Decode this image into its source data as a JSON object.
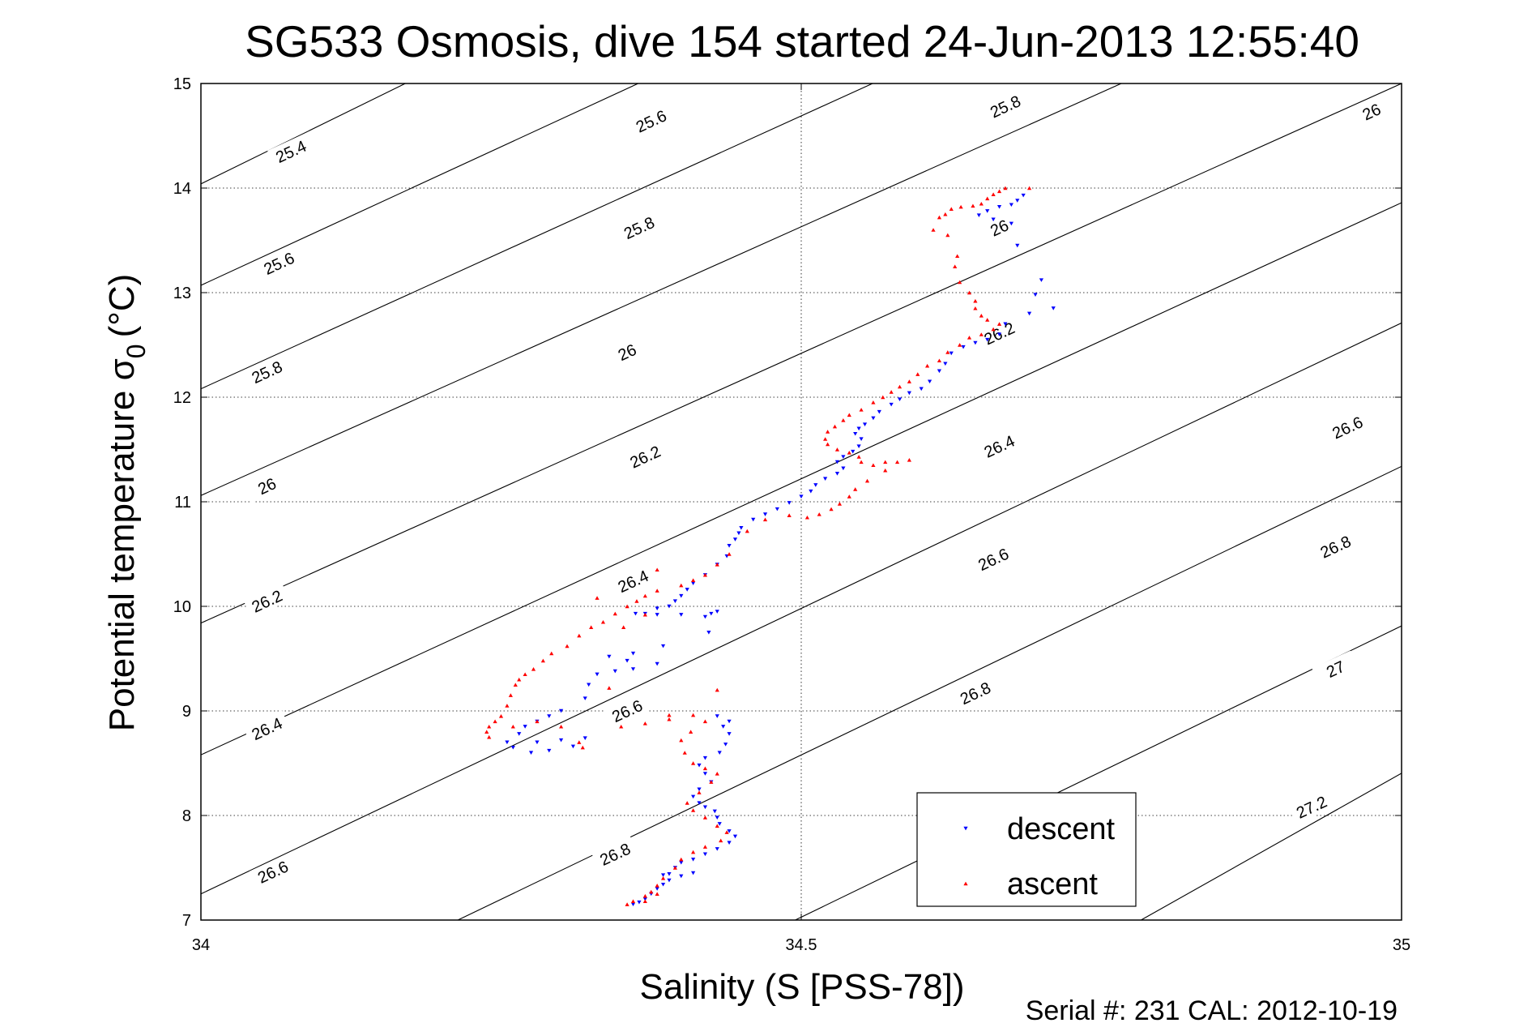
{
  "chart_data": {
    "type": "scatter",
    "title": "SG533 Osmosis, dive 154 started 24-Jun-2013 12:55:40",
    "xlabel": "Salinity (S [PSS-78])",
    "ylabel_main": "Potential temperature σ",
    "ylabel_sub": "0",
    "ylabel_unit": "(°C)",
    "xlim": [
      34,
      35
    ],
    "ylim": [
      7,
      15
    ],
    "x_ticks": [
      "34",
      "34.5",
      "35"
    ],
    "y_ticks": [
      "7",
      "8",
      "9",
      "10",
      "11",
      "12",
      "13",
      "14",
      "15"
    ],
    "grid": true,
    "legend_position": "bottom-right",
    "footer": "Serial #: 231  CAL: 2012-10-19",
    "isopycnals": [
      {
        "sigma": 25.4,
        "s": 34.0,
        "t": 14.04,
        "slope": 5.64
      },
      {
        "sigma": 25.6,
        "s": 34.0,
        "t": 13.07,
        "slope": 5.3
      },
      {
        "sigma": 25.8,
        "s": 34.0,
        "t": 12.08,
        "slope": 5.22
      },
      {
        "sigma": 26.0,
        "s": 34.0,
        "t": 11.06,
        "slope": 5.14
      },
      {
        "sigma": 26.2,
        "s": 34.0,
        "t": 9.84,
        "slope": 5.16
      },
      {
        "sigma": 26.4,
        "s": 34.0,
        "t": 8.58,
        "slope": 5.28
      },
      {
        "sigma": 26.6,
        "s": 34.0,
        "t": 7.25,
        "slope": 5.46
      },
      {
        "sigma": 26.8,
        "s": 34.214,
        "t": 7.0,
        "slope": 5.52
      },
      {
        "sigma": 27.0,
        "s": 34.495,
        "t": 7.0,
        "slope": 5.57
      },
      {
        "sigma": 27.2,
        "s": 34.783,
        "t": 7.0,
        "slope": 6.47
      }
    ],
    "contour_labels": [
      {
        "text": "25.4",
        "s": 34.075,
        "t": 14.35
      },
      {
        "text": "25.6",
        "s": 34.375,
        "t": 14.64
      },
      {
        "text": "25.8",
        "s": 34.67,
        "t": 14.78
      },
      {
        "text": "26",
        "s": 34.975,
        "t": 14.73
      },
      {
        "text": "25.6",
        "s": 34.065,
        "t": 13.28
      },
      {
        "text": "25.8",
        "s": 34.365,
        "t": 13.62
      },
      {
        "text": "26",
        "s": 34.665,
        "t": 13.62
      },
      {
        "text": "25.8",
        "s": 34.055,
        "t": 12.24
      },
      {
        "text": "26",
        "s": 34.355,
        "t": 12.43
      },
      {
        "text": "26.2",
        "s": 34.665,
        "t": 12.61
      },
      {
        "text": "26",
        "s": 34.055,
        "t": 11.15
      },
      {
        "text": "26.2",
        "s": 34.37,
        "t": 11.43
      },
      {
        "text": "26.4",
        "s": 34.665,
        "t": 11.53
      },
      {
        "text": "26.6",
        "s": 34.955,
        "t": 11.71
      },
      {
        "text": "26.2",
        "s": 34.055,
        "t": 10.05
      },
      {
        "text": "26.4",
        "s": 34.36,
        "t": 10.24
      },
      {
        "text": "26.6",
        "s": 34.66,
        "t": 10.45
      },
      {
        "text": "26.8",
        "s": 34.945,
        "t": 10.57
      },
      {
        "text": "26.4",
        "s": 34.055,
        "t": 8.83
      },
      {
        "text": "26.6",
        "s": 34.355,
        "t": 9.0
      },
      {
        "text": "26.8",
        "s": 34.645,
        "t": 9.17
      },
      {
        "text": "27",
        "s": 34.945,
        "t": 9.4
      },
      {
        "text": "26.6",
        "s": 34.06,
        "t": 7.46
      },
      {
        "text": "26.8",
        "s": 34.345,
        "t": 7.63
      },
      {
        "text": "27.2",
        "s": 34.925,
        "t": 8.08
      }
    ],
    "series": [
      {
        "name": "descent",
        "color": "#0000ff",
        "marker": "triangle-down",
        "points": [
          [
            34.685,
            13.93
          ],
          [
            34.68,
            13.88
          ],
          [
            34.675,
            13.84
          ],
          [
            34.665,
            13.82
          ],
          [
            34.655,
            13.78
          ],
          [
            34.648,
            13.74
          ],
          [
            34.66,
            13.7
          ],
          [
            34.675,
            13.66
          ],
          [
            34.68,
            13.45
          ],
          [
            34.7,
            13.12
          ],
          [
            34.695,
            12.98
          ],
          [
            34.71,
            12.85
          ],
          [
            34.69,
            12.8
          ],
          [
            34.67,
            12.7
          ],
          [
            34.665,
            12.6
          ],
          [
            34.655,
            12.55
          ],
          [
            34.645,
            12.52
          ],
          [
            34.635,
            12.48
          ],
          [
            34.625,
            12.42
          ],
          [
            34.62,
            12.32
          ],
          [
            34.615,
            12.25
          ],
          [
            34.607,
            12.15
          ],
          [
            34.6,
            12.08
          ],
          [
            34.59,
            12.04
          ],
          [
            34.582,
            11.98
          ],
          [
            34.575,
            11.93
          ],
          [
            34.565,
            11.86
          ],
          [
            34.56,
            11.8
          ],
          [
            34.553,
            11.74
          ],
          [
            34.548,
            11.7
          ],
          [
            34.545,
            11.65
          ],
          [
            34.55,
            11.6
          ],
          [
            34.548,
            11.53
          ],
          [
            34.543,
            11.48
          ],
          [
            34.535,
            11.43
          ],
          [
            34.53,
            11.38
          ],
          [
            34.535,
            11.32
          ],
          [
            34.53,
            11.27
          ],
          [
            34.52,
            11.22
          ],
          [
            34.512,
            11.16
          ],
          [
            34.508,
            11.1
          ],
          [
            34.5,
            11.05
          ],
          [
            34.49,
            10.99
          ],
          [
            34.48,
            10.93
          ],
          [
            34.47,
            10.88
          ],
          [
            34.46,
            10.83
          ],
          [
            34.45,
            10.75
          ],
          [
            34.448,
            10.7
          ],
          [
            34.445,
            10.64
          ],
          [
            34.44,
            10.58
          ],
          [
            34.438,
            10.48
          ],
          [
            34.43,
            10.4
          ],
          [
            34.42,
            10.3
          ],
          [
            34.41,
            10.22
          ],
          [
            34.405,
            10.16
          ],
          [
            34.4,
            10.1
          ],
          [
            34.395,
            10.05
          ],
          [
            34.39,
            10.0
          ],
          [
            34.38,
            9.98
          ],
          [
            34.37,
            9.93
          ],
          [
            34.362,
            9.93
          ],
          [
            34.38,
            9.92
          ],
          [
            34.4,
            9.92
          ],
          [
            34.42,
            9.9
          ],
          [
            34.425,
            9.93
          ],
          [
            34.43,
            9.95
          ],
          [
            34.423,
            9.75
          ],
          [
            34.385,
            9.62
          ],
          [
            34.36,
            9.55
          ],
          [
            34.34,
            9.52
          ],
          [
            34.355,
            9.48
          ],
          [
            34.38,
            9.45
          ],
          [
            34.36,
            9.4
          ],
          [
            34.345,
            9.38
          ],
          [
            34.33,
            9.35
          ],
          [
            34.323,
            9.25
          ],
          [
            34.32,
            9.12
          ],
          [
            34.3,
            9.0
          ],
          [
            34.29,
            8.95
          ],
          [
            34.28,
            8.9
          ],
          [
            34.27,
            8.85
          ],
          [
            34.265,
            8.78
          ],
          [
            34.255,
            8.7
          ],
          [
            34.26,
            8.65
          ],
          [
            34.28,
            8.7
          ],
          [
            34.3,
            8.72
          ],
          [
            34.32,
            8.74
          ],
          [
            34.31,
            8.66
          ],
          [
            34.29,
            8.62
          ],
          [
            34.275,
            8.6
          ],
          [
            34.43,
            8.95
          ],
          [
            34.44,
            8.9
          ],
          [
            34.435,
            8.85
          ],
          [
            34.44,
            8.78
          ],
          [
            34.437,
            8.68
          ],
          [
            34.432,
            8.6
          ],
          [
            34.42,
            8.55
          ],
          [
            34.415,
            8.48
          ],
          [
            34.42,
            8.4
          ],
          [
            34.425,
            8.32
          ],
          [
            34.415,
            8.25
          ],
          [
            34.41,
            8.18
          ],
          [
            34.415,
            8.12
          ],
          [
            34.42,
            8.08
          ],
          [
            34.428,
            8.04
          ],
          [
            34.43,
            7.98
          ],
          [
            34.432,
            7.92
          ],
          [
            34.44,
            7.85
          ],
          [
            34.445,
            7.8
          ],
          [
            34.44,
            7.74
          ],
          [
            34.43,
            7.68
          ],
          [
            34.42,
            7.63
          ],
          [
            34.41,
            7.58
          ],
          [
            34.4,
            7.55
          ],
          [
            34.395,
            7.5
          ],
          [
            34.39,
            7.44
          ],
          [
            34.39,
            7.38
          ],
          [
            34.385,
            7.34
          ],
          [
            34.38,
            7.3
          ],
          [
            34.375,
            7.25
          ],
          [
            34.37,
            7.2
          ],
          [
            34.365,
            7.17
          ],
          [
            34.36,
            7.15
          ],
          [
            34.385,
            7.43
          ],
          [
            34.4,
            7.42
          ],
          [
            34.41,
            7.45
          ]
        ]
      },
      {
        "name": "ascent",
        "color": "#ff0000",
        "marker": "triangle-up",
        "points": [
          [
            34.69,
            14.0
          ],
          [
            34.67,
            14.0
          ],
          [
            34.665,
            13.97
          ],
          [
            34.66,
            13.94
          ],
          [
            34.655,
            13.9
          ],
          [
            34.65,
            13.85
          ],
          [
            34.643,
            13.83
          ],
          [
            34.633,
            13.82
          ],
          [
            34.625,
            13.8
          ],
          [
            34.62,
            13.75
          ],
          [
            34.615,
            13.72
          ],
          [
            34.61,
            13.6
          ],
          [
            34.622,
            13.55
          ],
          [
            34.63,
            13.35
          ],
          [
            34.628,
            13.25
          ],
          [
            34.632,
            13.1
          ],
          [
            34.64,
            13.0
          ],
          [
            34.645,
            12.92
          ],
          [
            34.645,
            12.85
          ],
          [
            34.65,
            12.78
          ],
          [
            34.655,
            12.74
          ],
          [
            34.665,
            12.7
          ],
          [
            34.66,
            12.65
          ],
          [
            34.65,
            12.6
          ],
          [
            34.64,
            12.57
          ],
          [
            34.632,
            12.5
          ],
          [
            34.622,
            12.43
          ],
          [
            34.615,
            12.35
          ],
          [
            34.605,
            12.3
          ],
          [
            34.597,
            12.22
          ],
          [
            34.59,
            12.15
          ],
          [
            34.582,
            12.1
          ],
          [
            34.575,
            12.05
          ],
          [
            34.568,
            12.0
          ],
          [
            34.56,
            11.95
          ],
          [
            34.55,
            11.88
          ],
          [
            34.54,
            11.83
          ],
          [
            34.535,
            11.78
          ],
          [
            34.528,
            11.72
          ],
          [
            34.522,
            11.67
          ],
          [
            34.52,
            11.6
          ],
          [
            34.522,
            11.55
          ],
          [
            34.53,
            11.5
          ],
          [
            34.54,
            11.47
          ],
          [
            34.548,
            11.43
          ],
          [
            34.55,
            11.38
          ],
          [
            34.56,
            11.35
          ],
          [
            34.57,
            11.38
          ],
          [
            34.58,
            11.38
          ],
          [
            34.59,
            11.4
          ],
          [
            34.57,
            11.3
          ],
          [
            34.555,
            11.2
          ],
          [
            34.545,
            11.12
          ],
          [
            34.54,
            11.05
          ],
          [
            34.532,
            10.98
          ],
          [
            34.525,
            10.93
          ],
          [
            34.515,
            10.88
          ],
          [
            34.505,
            10.85
          ],
          [
            34.49,
            10.87
          ],
          [
            34.47,
            10.83
          ],
          [
            34.455,
            10.72
          ],
          [
            34.44,
            10.5
          ],
          [
            34.43,
            10.4
          ],
          [
            34.42,
            10.3
          ],
          [
            34.41,
            10.25
          ],
          [
            34.4,
            10.2
          ],
          [
            34.38,
            10.15
          ],
          [
            34.37,
            10.1
          ],
          [
            34.363,
            10.05
          ],
          [
            34.355,
            10.0
          ],
          [
            34.345,
            9.93
          ],
          [
            34.335,
            9.85
          ],
          [
            34.325,
            9.8
          ],
          [
            34.315,
            9.72
          ],
          [
            34.305,
            9.62
          ],
          [
            34.292,
            9.55
          ],
          [
            34.285,
            9.48
          ],
          [
            34.277,
            9.4
          ],
          [
            34.27,
            9.35
          ],
          [
            34.265,
            9.3
          ],
          [
            34.262,
            9.25
          ],
          [
            34.258,
            9.15
          ],
          [
            34.255,
            9.05
          ],
          [
            34.25,
            8.95
          ],
          [
            34.245,
            8.9
          ],
          [
            34.24,
            8.85
          ],
          [
            34.238,
            8.8
          ],
          [
            34.24,
            8.75
          ],
          [
            34.26,
            8.85
          ],
          [
            34.28,
            8.9
          ],
          [
            34.3,
            8.85
          ],
          [
            34.315,
            8.7
          ],
          [
            34.318,
            8.65
          ],
          [
            34.35,
            8.85
          ],
          [
            34.37,
            8.88
          ],
          [
            34.39,
            8.92
          ],
          [
            34.39,
            8.96
          ],
          [
            34.41,
            8.96
          ],
          [
            34.42,
            8.9
          ],
          [
            34.408,
            8.8
          ],
          [
            34.4,
            8.72
          ],
          [
            34.403,
            8.6
          ],
          [
            34.41,
            8.5
          ],
          [
            34.42,
            8.45
          ],
          [
            34.43,
            8.4
          ],
          [
            34.425,
            8.32
          ],
          [
            34.415,
            8.22
          ],
          [
            34.405,
            8.12
          ],
          [
            34.41,
            8.05
          ],
          [
            34.42,
            7.98
          ],
          [
            34.43,
            7.9
          ],
          [
            34.438,
            7.84
          ],
          [
            34.433,
            7.76
          ],
          [
            34.42,
            7.7
          ],
          [
            34.41,
            7.65
          ],
          [
            34.4,
            7.58
          ],
          [
            34.395,
            7.5
          ],
          [
            34.385,
            7.4
          ],
          [
            34.38,
            7.33
          ],
          [
            34.375,
            7.27
          ],
          [
            34.37,
            7.23
          ],
          [
            34.36,
            7.18
          ],
          [
            34.355,
            7.15
          ],
          [
            34.37,
            7.18
          ],
          [
            34.38,
            7.25
          ],
          [
            34.38,
            10.35
          ],
          [
            34.33,
            10.08
          ],
          [
            34.37,
            9.92
          ],
          [
            34.352,
            9.8
          ],
          [
            34.43,
            9.2
          ],
          [
            34.34,
            9.22
          ]
        ]
      }
    ]
  }
}
